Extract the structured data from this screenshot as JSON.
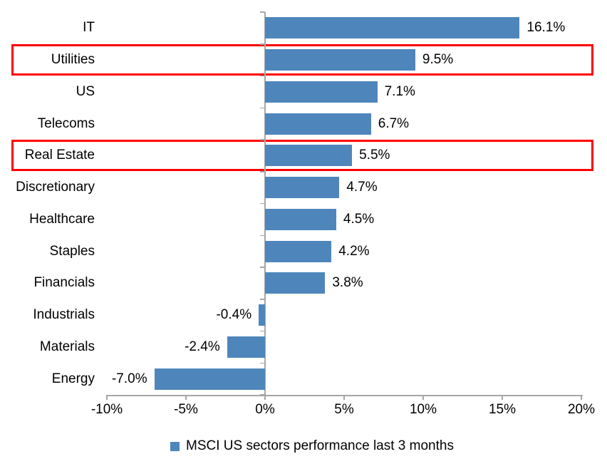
{
  "chart_data": {
    "type": "bar",
    "orientation": "horizontal",
    "title": "",
    "categories": [
      "IT",
      "Utilities",
      "US",
      "Telecoms",
      "Real Estate",
      "Discretionary",
      "Healthcare",
      "Staples",
      "Financials",
      "Industrials",
      "Materials",
      "Energy"
    ],
    "values": [
      16.1,
      9.5,
      7.1,
      6.7,
      5.5,
      4.7,
      4.5,
      4.2,
      3.8,
      -0.4,
      -2.4,
      -7.0
    ],
    "data_labels": [
      "16.1%",
      "9.5%",
      "7.1%",
      "6.7%",
      "5.5%",
      "4.7%",
      "4.5%",
      "4.2%",
      "3.8%",
      "-0.4%",
      "-2.4%",
      "-7.0%"
    ],
    "xlim": [
      -10,
      20
    ],
    "x_ticks": [
      {
        "value": -10,
        "label": "-10%"
      },
      {
        "value": -5,
        "label": "-5%"
      },
      {
        "value": 0,
        "label": "0%"
      },
      {
        "value": 5,
        "label": "5%"
      },
      {
        "value": 10,
        "label": "10%"
      },
      {
        "value": 15,
        "label": "15%"
      },
      {
        "value": 20,
        "label": "20%"
      }
    ],
    "grid": false,
    "legend": "MSCI US sectors performance last 3 months",
    "legend_position": "bottom",
    "bar_color": "#4E86BC",
    "axis_color": "#A6A6A6",
    "text_color": "#000000",
    "highlight_color": "#FF0000",
    "highlighted_categories": [
      "Utilities",
      "Real Estate"
    ]
  }
}
